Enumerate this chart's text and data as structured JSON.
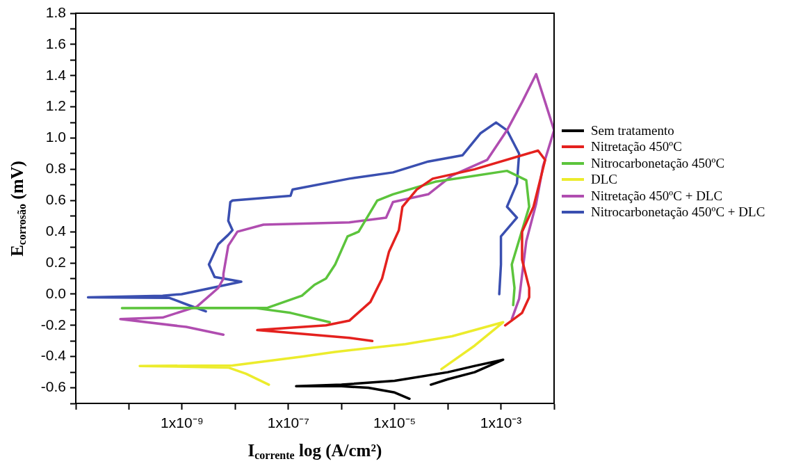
{
  "chart_data": {
    "type": "line",
    "xlabel": "I$_{corrente}$ log (A/cm²)",
    "ylabel": "E$_{corrosão}$ (mV)",
    "log": "x",
    "legend": "right",
    "xlim": [
      1e-11,
      0.01
    ],
    "xticks": [
      {
        "value": 1e-11,
        "label": null
      },
      {
        "value": 1e-10,
        "label": null
      },
      {
        "value": 1e-09,
        "label": "1x10⁻⁹"
      },
      {
        "value": 1e-08,
        "label": null
      },
      {
        "value": 1e-07,
        "label": "1x10⁻⁷"
      },
      {
        "value": 1e-06,
        "label": null
      },
      {
        "value": 1e-05,
        "label": "1x10⁻⁵"
      },
      {
        "value": 0.0001,
        "label": null
      },
      {
        "value": 0.001,
        "label": "1x10⁻³"
      },
      {
        "value": 0.01,
        "label": null
      }
    ],
    "ylim": [
      -0.7,
      1.8
    ],
    "yticks": [
      {
        "value": -0.7,
        "label": null
      },
      -0.6,
      {
        "value": -0.5,
        "label": null
      },
      -0.4,
      {
        "value": -0.3,
        "label": null
      },
      -0.2,
      {
        "value": -0.1,
        "label": null
      },
      {
        "value": 0,
        "label": "0.0"
      },
      {
        "value": 0.1,
        "label": null
      },
      0.2,
      {
        "value": 0.3,
        "label": null
      },
      0.4,
      {
        "value": 0.5,
        "label": null
      },
      0.6,
      {
        "value": 0.7,
        "label": null
      },
      0.8,
      {
        "value": 0.9,
        "label": null
      },
      {
        "value": 1,
        "label": "1.0"
      },
      {
        "value": 1.1,
        "label": null
      },
      1.2,
      {
        "value": 1.3,
        "label": null
      },
      1.4,
      {
        "value": 1.5,
        "label": null
      },
      1.6,
      {
        "value": 1.7,
        "label": null
      },
      1.8
    ],
    "series": [
      {
        "name": "Sem tratamento",
        "color": "#000000",
        "x": [
          1.9e-05,
          1e-05,
          3.2e-06,
          1e-06,
          1.4e-07,
          1e-06,
          1e-05,
          0.0001,
          0.00032,
          0.0011,
          0.00032,
          0.0001,
          4.8e-05
        ],
        "values": [
          -0.67,
          -0.63,
          -0.6,
          -0.59,
          -0.59,
          -0.58,
          -0.555,
          -0.5,
          -0.46,
          -0.42,
          -0.5,
          -0.545,
          -0.58
        ]
      },
      {
        "name": "Nitretação 450ºC",
        "color": "#e4211e",
        "x": [
          3.8e-06,
          1.4e-06,
          2.6e-08,
          5.1e-07,
          1.4e-06,
          3.5e-06,
          5.8e-06,
          7.8e-06,
          1.2e-05,
          1.4e-05,
          2.6e-05,
          5.2e-05,
          0.00032,
          0.005,
          0.0068,
          0.0041,
          0.0025,
          0.0025,
          0.0034,
          0.0034,
          0.0025,
          0.0012
        ],
        "values": [
          -0.3,
          -0.28,
          -0.23,
          -0.2,
          -0.17,
          -0.05,
          0.1,
          0.27,
          0.41,
          0.56,
          0.67,
          0.74,
          0.8,
          0.92,
          0.86,
          0.56,
          0.4,
          0.22,
          0.04,
          -0.02,
          -0.12,
          -0.2
        ]
      },
      {
        "name": "Nitrocarbonetação 450ºC",
        "color": "#5cc43c",
        "x": [
          6e-07,
          1.1e-07,
          2.5e-08,
          7.4e-11,
          4.1e-08,
          1.8e-07,
          3.1e-07,
          5.1e-07,
          7.6e-07,
          1.3e-06,
          2.1e-06,
          4.7e-06,
          9.3e-06,
          5.8e-05,
          0.0013,
          0.003,
          0.0034,
          0.0016,
          0.0018,
          0.0017
        ],
        "values": [
          -0.18,
          -0.12,
          -0.09,
          -0.09,
          -0.087,
          -0.01,
          0.06,
          0.1,
          0.19,
          0.37,
          0.4,
          0.6,
          0.64,
          0.72,
          0.79,
          0.73,
          0.56,
          0.19,
          0.04,
          -0.07
        ]
      },
      {
        "name": "DLC",
        "color": "#ecec2c",
        "x": [
          4.3e-08,
          1.6e-08,
          7.4e-09,
          1.6e-10,
          8.9e-09,
          1.8e-07,
          7.6e-07,
          1.6e-05,
          0.00012,
          0.0011,
          0.00032,
          7.6e-05
        ],
        "values": [
          -0.58,
          -0.51,
          -0.47,
          -0.46,
          -0.457,
          -0.4,
          -0.37,
          -0.32,
          -0.27,
          -0.18,
          -0.33,
          -0.48
        ]
      },
      {
        "name": "Nitretação 450ºC + DLC",
        "color": "#b04db0",
        "x": [
          6e-09,
          1.2e-09,
          6.9e-11,
          4.3e-10,
          1.9e-09,
          4.8e-09,
          6e-09,
          6e-09,
          7.4e-09,
          1.1e-08,
          3.4e-08,
          1.4e-06,
          6.9e-06,
          9.3e-06,
          4.3e-05,
          0.00012,
          0.00055,
          0.0013,
          0.0025,
          0.0046,
          0.0068,
          0.01,
          0.0062,
          0.0046,
          0.003,
          0.0022,
          0.0016
        ],
        "values": [
          -0.26,
          -0.21,
          -0.16,
          -0.15,
          -0.08,
          0.04,
          0.1,
          0.13,
          0.31,
          0.4,
          0.445,
          0.46,
          0.49,
          0.59,
          0.64,
          0.76,
          0.86,
          1.05,
          1.23,
          1.41,
          1.23,
          1.05,
          0.82,
          0.58,
          0.34,
          -0.03,
          -0.16
        ]
      },
      {
        "name": "Nitrocarbonetação 450ºC + DLC",
        "color": "#3a4fb0",
        "x": [
          2.8e-09,
          1.2e-09,
          5.8e-10,
          1.7e-11,
          4.3e-10,
          9.8e-10,
          1.3e-08,
          4.1e-09,
          3.2e-09,
          4.8e-09,
          7.4e-09,
          8.9e-09,
          7.4e-09,
          8.1e-09,
          8.9e-09,
          1.1e-07,
          1.2e-07,
          1.4e-06,
          9.3e-06,
          4.3e-05,
          0.00019,
          0.00041,
          0.00081,
          0.0013,
          0.0022,
          0.002,
          0.0013,
          0.002,
          0.001,
          0.001,
          0.00093
        ],
        "values": [
          -0.11,
          -0.065,
          -0.024,
          -0.02,
          -0.01,
          0,
          0.08,
          0.11,
          0.19,
          0.32,
          0.38,
          0.41,
          0.47,
          0.59,
          0.6,
          0.63,
          0.67,
          0.74,
          0.78,
          0.85,
          0.89,
          1.03,
          1.1,
          1.05,
          0.9,
          0.71,
          0.56,
          0.49,
          0.37,
          0.19,
          0
        ]
      }
    ]
  }
}
